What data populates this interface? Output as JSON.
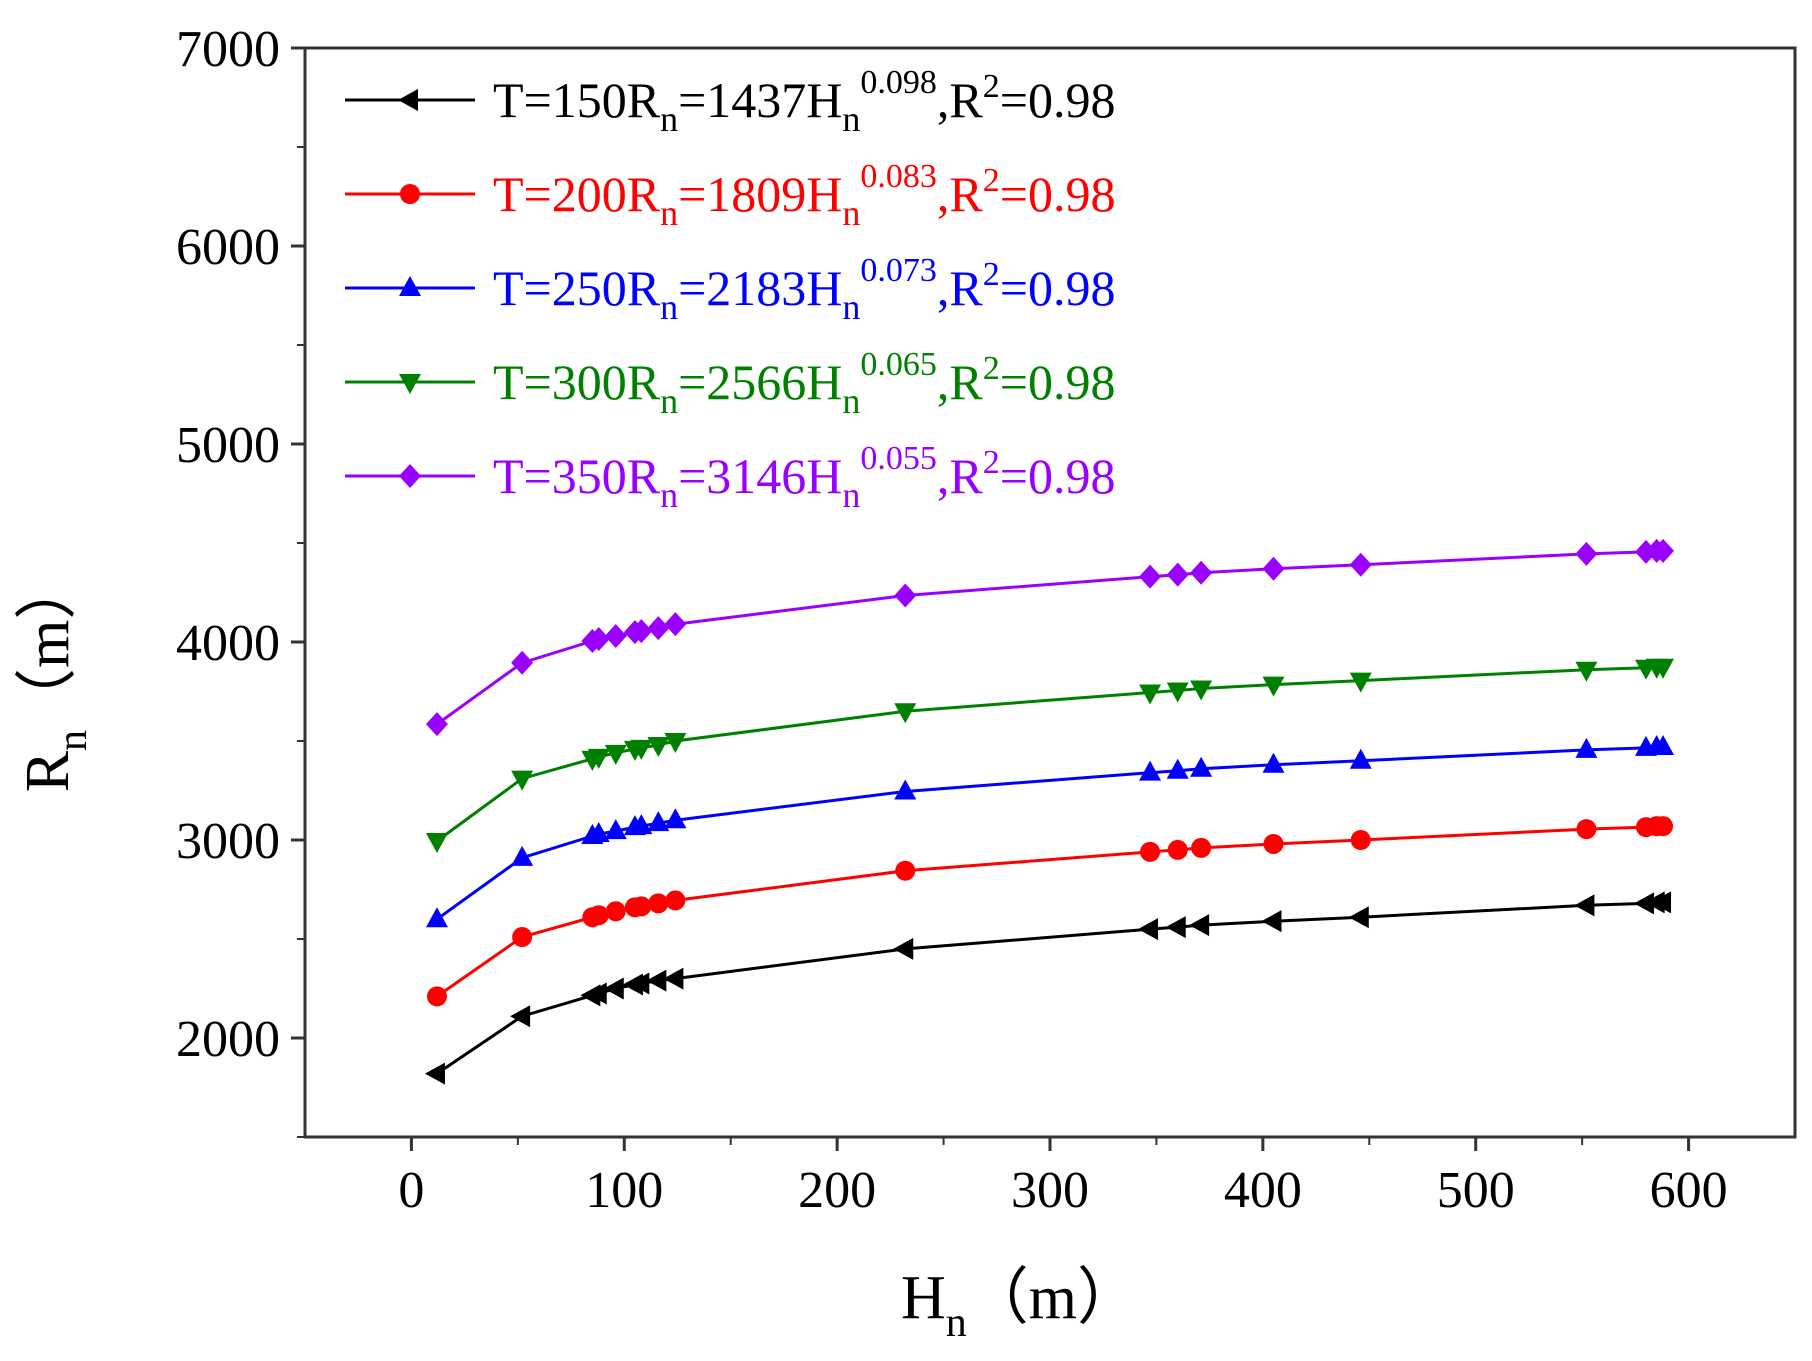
{
  "chart_data": {
    "type": "line",
    "title": "",
    "xlabel": {
      "main": "H",
      "sub": "n",
      "unit": "（m）"
    },
    "ylabel": {
      "main": "R",
      "sub": "n",
      "unit": "（m）"
    },
    "xlim": [
      -50,
      650
    ],
    "ylim": [
      1500,
      7000
    ],
    "xticks": [
      0,
      100,
      200,
      300,
      400,
      500,
      600
    ],
    "yticks": [
      2000,
      3000,
      4000,
      5000,
      6000,
      7000
    ],
    "x": [
      12,
      52,
      85,
      88,
      96,
      105,
      108,
      116,
      124,
      232,
      347,
      360,
      371,
      405,
      446,
      552,
      580,
      585,
      588
    ],
    "legend_position": "top-left",
    "series": [
      {
        "name": "T=150",
        "color": "#000000",
        "marker": "triangle-left",
        "equation": {
          "T": "T=150",
          "Rn": "R",
          "Rn_sub": "n",
          "eq": "=1437H",
          "H_sub": "n",
          "exp": "0.098",
          "r_label": ",R",
          "r_exp": "2",
          "r_value": "=0.98"
        },
        "values": [
          1820,
          2110,
          2215,
          2225,
          2250,
          2270,
          2275,
          2290,
          2300,
          2450,
          2550,
          2560,
          2570,
          2590,
          2610,
          2670,
          2680,
          2685,
          2685
        ]
      },
      {
        "name": "T=200",
        "color": "#ff0000",
        "marker": "circle",
        "equation": {
          "T": "T=200",
          "Rn": "R",
          "Rn_sub": "n",
          "eq": "=1809H",
          "H_sub": "n",
          "exp": "0.083",
          "r_label": ",R",
          "r_exp": "2",
          "r_value": "=0.98"
        },
        "values": [
          2210,
          2510,
          2610,
          2620,
          2640,
          2660,
          2665,
          2680,
          2695,
          2845,
          2940,
          2950,
          2960,
          2980,
          3000,
          3055,
          3065,
          3070,
          3070
        ]
      },
      {
        "name": "T=250",
        "color": "#0000ff",
        "marker": "triangle-up",
        "equation": {
          "T": "T=250",
          "Rn": "R",
          "Rn_sub": "n",
          "eq": "=2183H",
          "H_sub": "n",
          "exp": "0.073",
          "r_label": ",R",
          "r_exp": "2",
          "r_value": "=0.98"
        },
        "values": [
          2600,
          2910,
          3020,
          3030,
          3045,
          3065,
          3070,
          3085,
          3100,
          3245,
          3340,
          3350,
          3360,
          3380,
          3400,
          3455,
          3465,
          3470,
          3470
        ]
      },
      {
        "name": "T=300",
        "color": "#008000",
        "marker": "triangle-down",
        "equation": {
          "T": "T=300",
          "Rn": "R",
          "Rn_sub": "n",
          "eq": "=2566H",
          "H_sub": "n",
          "exp": "0.065",
          "r_label": ",R",
          "r_exp": "2",
          "r_value": "=0.98"
        },
        "values": [
          2995,
          3310,
          3410,
          3420,
          3440,
          3460,
          3465,
          3480,
          3500,
          3650,
          3745,
          3755,
          3765,
          3785,
          3805,
          3860,
          3870,
          3875,
          3875
        ]
      },
      {
        "name": "T=350",
        "color": "#9900ff",
        "marker": "diamond",
        "equation": {
          "T": "T=350",
          "Rn": "R",
          "Rn_sub": "n",
          "eq": "=3146H",
          "H_sub": "n",
          "exp": "0.055",
          "r_label": ",R",
          "r_exp": "2",
          "r_value": "=0.98"
        },
        "values": [
          3585,
          3895,
          4005,
          4015,
          4030,
          4050,
          4055,
          4070,
          4090,
          4235,
          4330,
          4340,
          4350,
          4370,
          4390,
          4445,
          4455,
          4460,
          4460
        ]
      }
    ]
  }
}
